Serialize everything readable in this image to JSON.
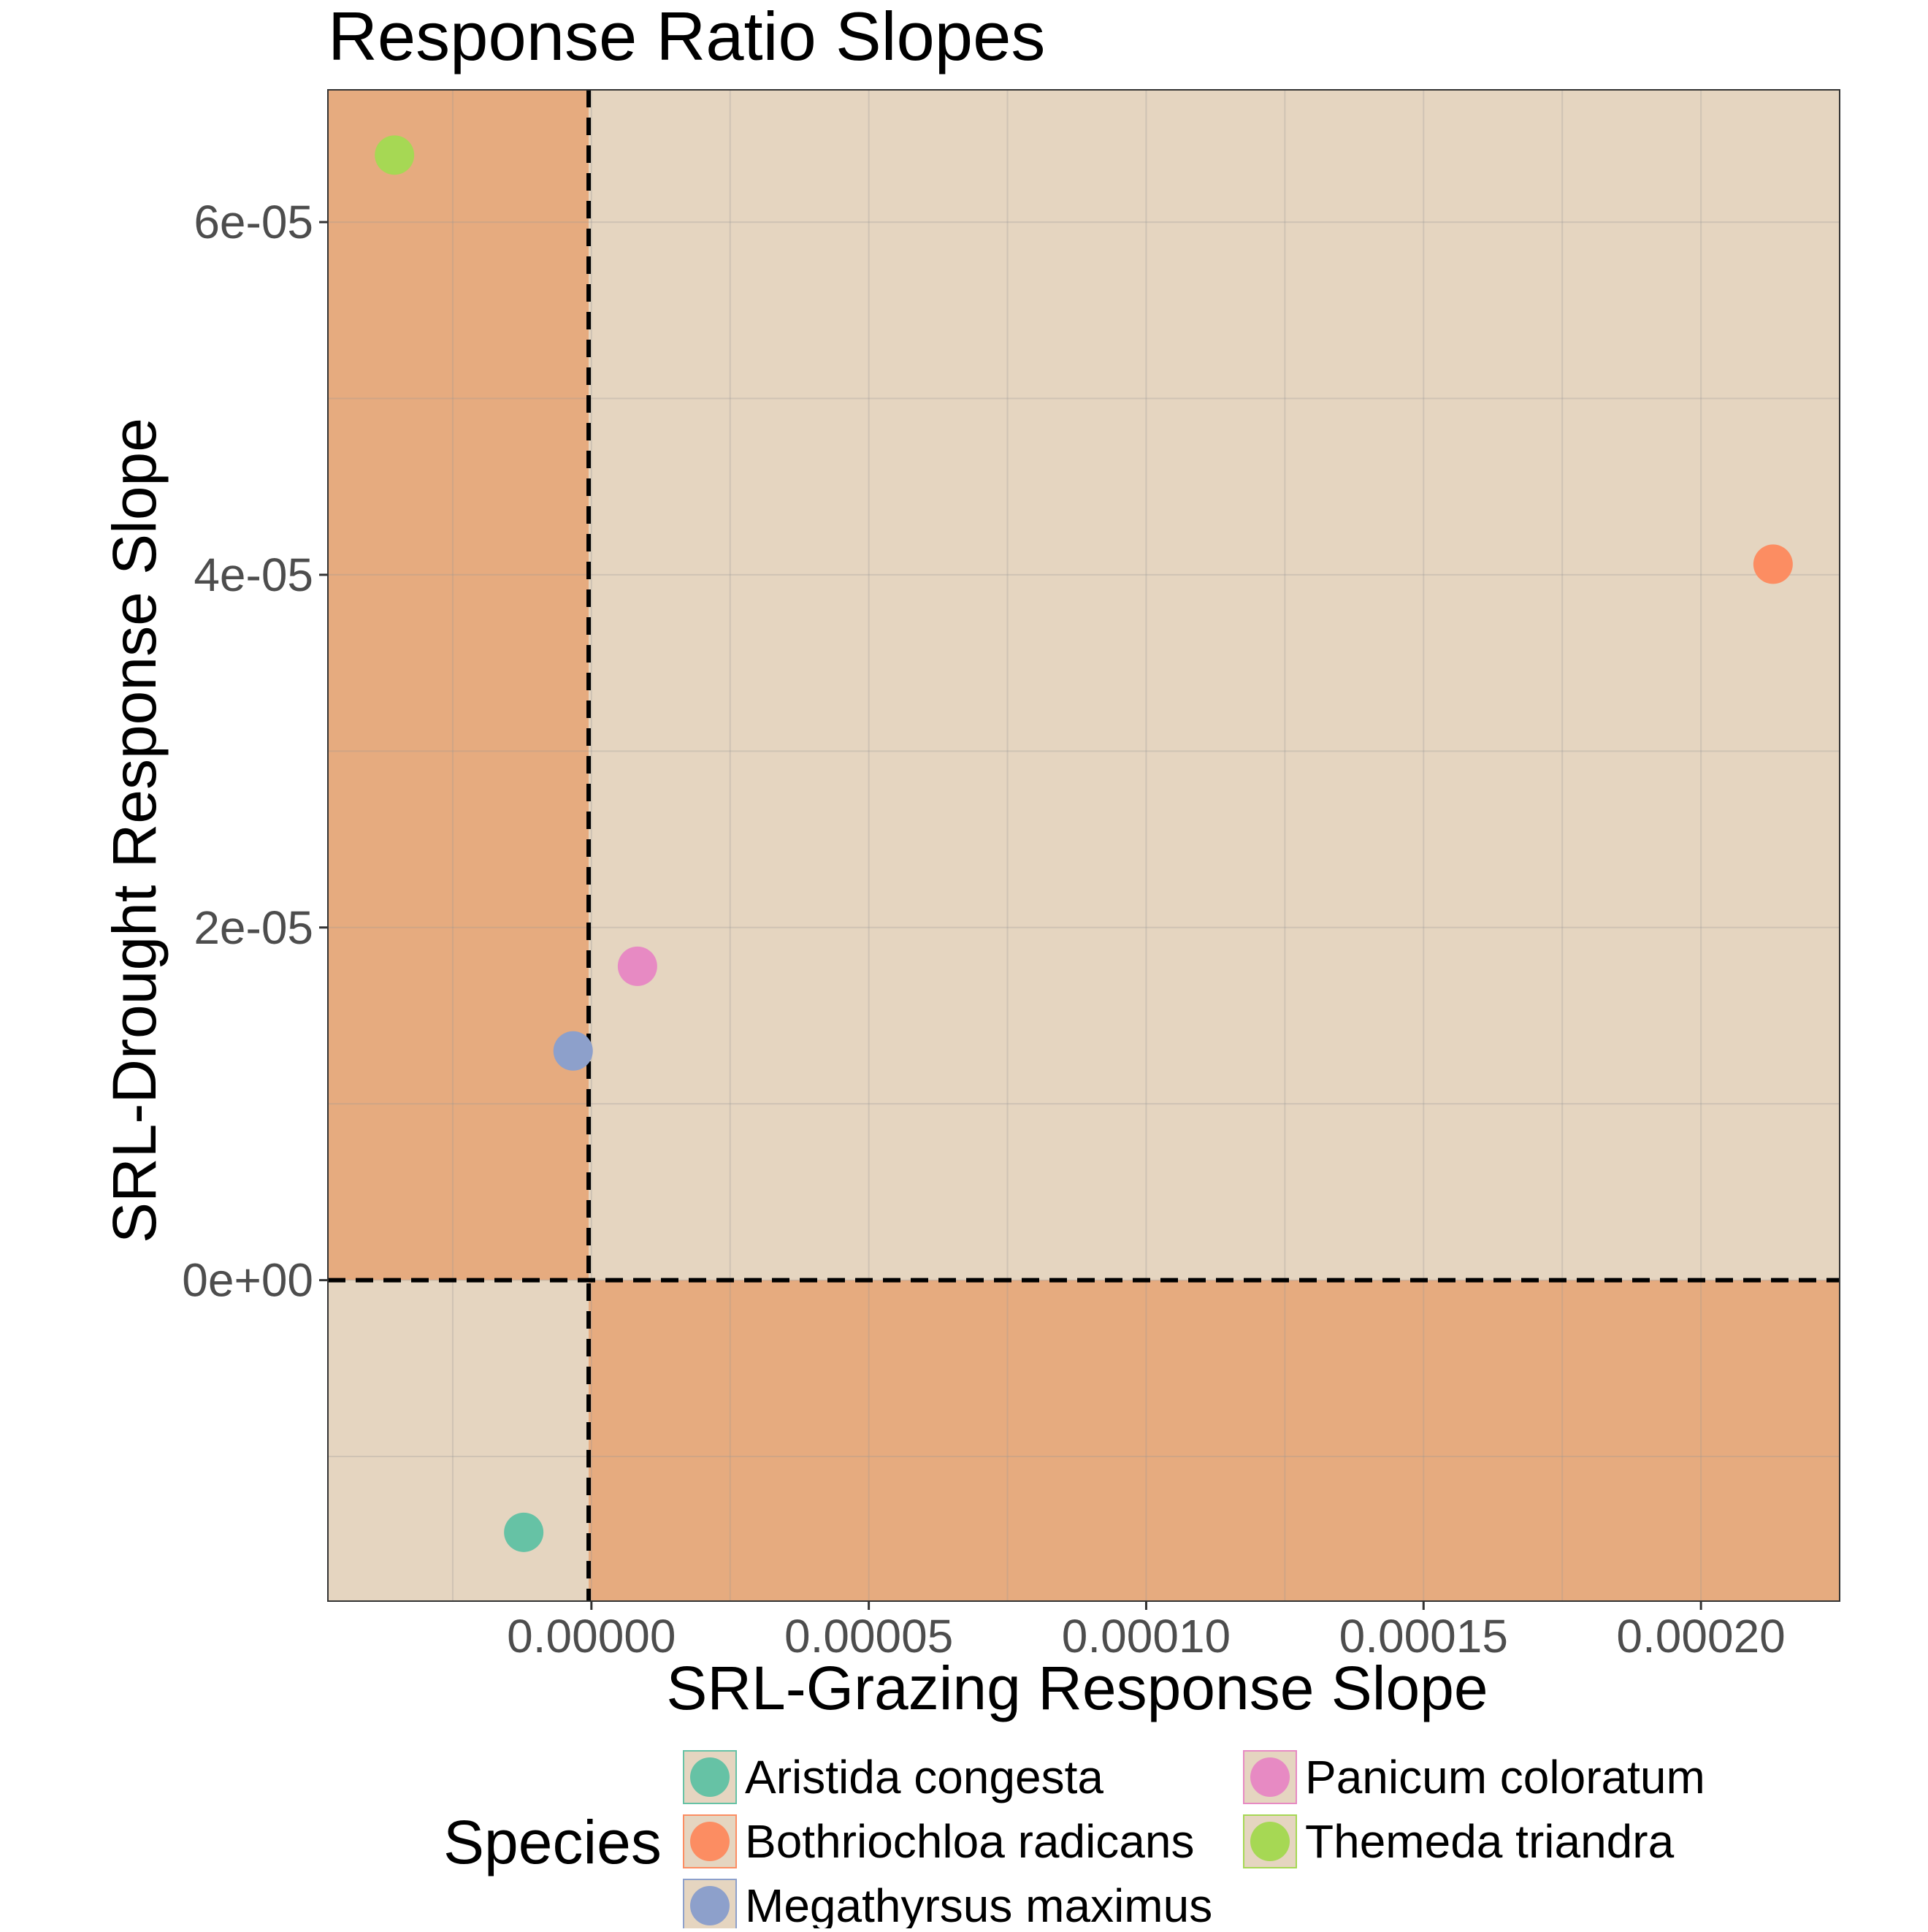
{
  "chart_data": {
    "type": "scatter",
    "title": "Response Ratio Slopes",
    "xlabel": "SRL-Grazing Response Slope",
    "ylabel": "SRL-Drought Response Slope",
    "xlim": [
      -4.75e-05,
      0.000225
    ],
    "ylim": [
      -1.82e-05,
      6.75e-05
    ],
    "x_ticks": [
      0.0,
      5e-05,
      0.0001,
      0.00015,
      0.0002
    ],
    "x_tick_labels": [
      "0.00000",
      "0.00005",
      "0.00010",
      "0.00015",
      "0.00020"
    ],
    "y_ticks": [
      0.0,
      2e-05,
      4e-05,
      6e-05
    ],
    "y_tick_labels": [
      "0e+00",
      "2e-05",
      "4e-05",
      "6e-05"
    ],
    "x_reference_line": -5e-07,
    "y_reference_line": 0.0,
    "grid": true,
    "legend_position": "bottom",
    "legend_title": "Species",
    "series": [
      {
        "name": "Aristida congesta",
        "color": "#66c2a5",
        "x": [
          -1.22e-05
        ],
        "y": [
          -1.43e-05
        ]
      },
      {
        "name": "Bothriochloa radicans",
        "color": "#fc8d62",
        "x": [
          0.000213
        ],
        "y": [
          4.06e-05
        ]
      },
      {
        "name": "Megathyrsus maximus",
        "color": "#8da0cb",
        "x": [
          -3.3e-06
        ],
        "y": [
          1.3e-05
        ]
      },
      {
        "name": "Panicum coloratum",
        "color": "#e78ac3",
        "x": [
          8.3e-06
        ],
        "y": [
          1.78e-05
        ]
      },
      {
        "name": "Themeda triandra",
        "color": "#a6d854",
        "x": [
          -3.55e-05
        ],
        "y": [
          6.38e-05
        ]
      }
    ],
    "quadrant_colors": {
      "same_sign": "#e5d5c0",
      "opposite_sign": "#e6ab7f"
    }
  }
}
